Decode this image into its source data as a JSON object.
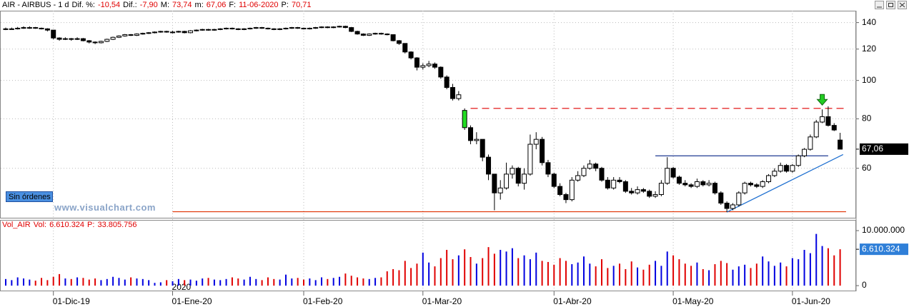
{
  "chart_data": [
    {
      "type": "candlestick",
      "header": {
        "symbol": "AIR - AIRBUS - 1 d",
        "items": [
          {
            "label": "Dif. %:",
            "value": "-10,54"
          },
          {
            "label": "Dif.:",
            "value": "-7,90"
          },
          {
            "label": "M:",
            "value": "73,74"
          },
          {
            "label": "m:",
            "value": "67,06"
          },
          {
            "label": "F:",
            "value": "11-06-2020"
          },
          {
            "label": "P:",
            "value": "70,71"
          }
        ]
      },
      "status_label": "Sin órdenes",
      "watermark": "www.visualchart.com",
      "year_label": "2020",
      "categories": [
        null,
        null,
        null,
        null,
        null,
        null,
        null,
        null,
        "01-Dic-19",
        null,
        null,
        null,
        null,
        null,
        null,
        null,
        null,
        null,
        null,
        null,
        null,
        null,
        null,
        null,
        null,
        null,
        null,
        null,
        "01-Ene-20",
        null,
        null,
        null,
        null,
        null,
        null,
        null,
        null,
        null,
        null,
        null,
        null,
        null,
        null,
        null,
        null,
        null,
        null,
        null,
        null,
        null,
        "01-Feb-20",
        null,
        null,
        null,
        null,
        null,
        null,
        null,
        null,
        null,
        null,
        null,
        null,
        null,
        null,
        null,
        null,
        null,
        null,
        null,
        "01-Mar-20",
        null,
        null,
        null,
        null,
        null,
        null,
        null,
        null,
        null,
        null,
        null,
        null,
        null,
        null,
        null,
        null,
        null,
        null,
        null,
        null,
        null,
        "01-Abr-20",
        null,
        null,
        null,
        null,
        null,
        null,
        null,
        null,
        null,
        null,
        null,
        null,
        null,
        null,
        null,
        null,
        null,
        null,
        null,
        "01-May-20",
        null,
        null,
        null,
        null,
        null,
        null,
        null,
        null,
        null,
        null,
        null,
        null,
        null,
        null,
        null,
        null,
        null,
        null,
        null,
        "01-Jun-20",
        null,
        null,
        null,
        null,
        null,
        null,
        null,
        null
      ],
      "candles": [
        [
          134.5,
          136,
          134,
          135
        ],
        [
          135,
          136,
          134.5,
          135
        ],
        [
          135,
          136.5,
          134.5,
          135.5
        ],
        [
          135.5,
          137,
          135,
          136
        ],
        [
          136,
          137,
          135,
          136
        ],
        [
          136,
          136.5,
          135,
          135.5
        ],
        [
          135.5,
          136,
          134.5,
          135
        ],
        [
          135,
          135.5,
          133,
          134
        ],
        [
          134,
          134,
          127,
          128
        ],
        [
          128,
          128.5,
          126,
          127
        ],
        [
          127,
          128.5,
          126.5,
          127.5
        ],
        [
          127.5,
          128,
          126,
          127
        ],
        [
          127,
          128.5,
          126.5,
          127.5
        ],
        [
          127.5,
          128,
          125.5,
          126
        ],
        [
          126,
          126.5,
          124,
          125
        ],
        [
          125,
          125.5,
          123.5,
          124.5
        ],
        [
          124.5,
          126,
          124,
          125.5
        ],
        [
          125.5,
          127.5,
          125,
          127
        ],
        [
          127,
          129,
          126.5,
          128.5
        ],
        [
          128.5,
          130,
          128,
          129.5
        ],
        [
          129.5,
          131,
          129,
          130.5
        ],
        [
          130.5,
          131,
          129.5,
          130
        ],
        [
          130,
          131.5,
          129.5,
          131
        ],
        [
          131,
          132,
          130.5,
          131.5
        ],
        [
          131.5,
          132.5,
          131,
          132
        ],
        [
          132,
          133,
          131.5,
          132.5
        ],
        [
          132.5,
          133.5,
          132,
          133
        ],
        [
          133,
          133.5,
          132,
          132.5
        ],
        [
          132.5,
          133.5,
          131.5,
          132.5
        ],
        [
          132.5,
          133.5,
          132,
          133
        ],
        [
          133,
          133.5,
          131.5,
          132
        ],
        [
          132,
          134,
          131.5,
          133.5
        ],
        [
          133.5,
          134.5,
          133,
          134
        ],
        [
          134,
          135,
          133.5,
          134.5
        ],
        [
          134.5,
          135,
          133.5,
          134
        ],
        [
          134,
          135,
          133.5,
          134.5
        ],
        [
          134.5,
          135.5,
          134,
          135
        ],
        [
          135,
          136,
          134.5,
          135.5
        ],
        [
          135.5,
          136,
          134.5,
          135
        ],
        [
          135,
          135.5,
          134,
          134.5
        ],
        [
          134.5,
          135.5,
          134,
          135
        ],
        [
          135,
          136,
          134.5,
          135.5
        ],
        [
          135.5,
          136.5,
          135,
          136
        ],
        [
          136,
          136.5,
          135,
          135.5
        ],
        [
          135.5,
          136,
          134.5,
          135
        ],
        [
          135,
          135.5,
          134,
          134.5
        ],
        [
          134.5,
          135.5,
          134,
          135
        ],
        [
          135,
          136,
          134.5,
          135.5
        ],
        [
          135.5,
          136.5,
          135,
          136
        ],
        [
          136,
          136.5,
          135,
          135.5
        ],
        [
          135.5,
          136,
          134.5,
          135
        ],
        [
          135,
          136,
          134.5,
          135.5
        ],
        [
          135.5,
          136.5,
          135,
          136
        ],
        [
          136,
          137,
          135.5,
          136.5
        ],
        [
          136.5,
          137,
          135.5,
          136
        ],
        [
          136,
          137,
          135.5,
          136.5
        ],
        [
          136.5,
          137.5,
          136,
          137
        ],
        [
          137,
          137.5,
          135.5,
          136
        ],
        [
          136,
          136.5,
          132.5,
          133
        ],
        [
          133,
          133.5,
          130.5,
          131
        ],
        [
          131,
          131.5,
          129.5,
          130
        ],
        [
          130,
          131.5,
          129.5,
          131
        ],
        [
          131,
          132,
          130.5,
          131.5
        ],
        [
          131.5,
          132,
          130.5,
          131
        ],
        [
          131,
          131.5,
          130,
          130.5
        ],
        [
          130.5,
          130.5,
          125.5,
          126
        ],
        [
          126,
          126.5,
          123,
          124
        ],
        [
          124,
          124,
          117,
          118
        ],
        [
          118,
          118.5,
          113,
          114
        ],
        [
          114,
          114.5,
          106,
          108
        ],
        [
          108,
          110.5,
          106.5,
          109
        ],
        [
          109,
          112,
          108,
          110
        ],
        [
          110,
          111,
          107,
          108
        ],
        [
          108,
          108.5,
          101,
          102
        ],
        [
          102,
          103,
          95,
          96
        ],
        [
          96,
          98,
          89,
          90
        ],
        [
          90,
          94,
          89,
          92
        ],
        [
          84,
          85,
          75,
          76
        ],
        [
          76,
          77,
          69,
          70.5
        ],
        [
          70.5,
          74,
          69,
          71
        ],
        [
          71,
          71,
          62.5,
          64
        ],
        [
          64,
          65,
          56,
          58
        ],
        [
          58,
          58,
          47,
          52
        ],
        [
          52,
          56,
          50,
          53.5
        ],
        [
          53.5,
          62,
          53,
          58
        ],
        [
          58,
          61,
          56.5,
          60
        ],
        [
          60,
          60.5,
          54,
          55
        ],
        [
          55,
          60,
          53,
          58
        ],
        [
          58,
          73,
          57.5,
          69
        ],
        [
          69,
          74,
          67,
          71
        ],
        [
          71,
          72,
          61,
          62
        ],
        [
          62,
          63,
          57,
          58
        ],
        [
          58,
          58.5,
          53.5,
          54
        ],
        [
          54,
          55,
          51,
          51.5
        ],
        [
          51.5,
          52,
          49,
          50
        ],
        [
          50,
          57,
          49.5,
          56
        ],
        [
          56,
          59,
          55.5,
          57.5
        ],
        [
          57.5,
          61,
          57,
          60
        ],
        [
          60,
          63,
          59.5,
          61.5
        ],
        [
          61.5,
          62,
          59,
          60
        ],
        [
          60,
          60.5,
          55.5,
          56
        ],
        [
          56,
          57,
          53,
          53.5
        ],
        [
          53.5,
          57,
          53,
          56
        ],
        [
          56,
          57,
          55,
          55.5
        ],
        [
          55.5,
          56,
          52,
          52.5
        ],
        [
          52.5,
          53.5,
          51.5,
          52
        ],
        [
          52,
          54,
          51.5,
          53
        ],
        [
          53,
          53.5,
          52,
          52.5
        ],
        [
          52.5,
          53,
          50.5,
          51
        ],
        [
          51,
          52.5,
          50.5,
          51.5
        ],
        [
          51.5,
          56,
          51,
          55
        ],
        [
          55,
          64,
          54.5,
          60
        ],
        [
          60,
          60.5,
          56.5,
          57
        ],
        [
          57,
          57.5,
          54.5,
          55
        ],
        [
          55,
          56,
          54,
          54.5
        ],
        [
          54.5,
          55,
          53.5,
          54
        ],
        [
          54,
          56.5,
          53.5,
          55.5
        ],
        [
          55.5,
          56,
          54,
          54.5
        ],
        [
          54.5,
          56,
          54,
          55
        ],
        [
          55,
          55.5,
          51.5,
          52
        ],
        [
          52,
          52.5,
          48.5,
          49
        ],
        [
          49,
          49.5,
          46.5,
          47.5
        ],
        [
          47.5,
          49,
          47,
          48.5
        ],
        [
          48.5,
          52.5,
          48,
          52
        ],
        [
          52,
          55.5,
          51.5,
          55
        ],
        [
          55,
          55.5,
          54,
          54.5
        ],
        [
          54.5,
          55,
          53.5,
          54
        ],
        [
          54,
          56,
          53.5,
          55.5
        ],
        [
          55.5,
          58,
          55,
          57.5
        ],
        [
          57.5,
          60,
          57,
          59
        ],
        [
          59,
          62,
          58.5,
          61
        ],
        [
          61,
          61.5,
          58.5,
          59
        ],
        [
          59,
          61.5,
          58.5,
          61
        ],
        [
          61,
          65,
          60.5,
          64.5
        ],
        [
          64.5,
          67.5,
          64,
          67
        ],
        [
          67,
          73,
          66.5,
          72
        ],
        [
          72,
          79.5,
          71.5,
          78.5
        ],
        [
          78.5,
          84.5,
          78,
          81
        ],
        [
          81,
          86,
          76.5,
          77
        ],
        [
          77,
          78,
          74.5,
          74.96
        ],
        [
          70.71,
          73.74,
          67.06,
          67.06
        ]
      ],
      "up_color": "#ffffff",
      "down_color": "#000000",
      "highlight": {
        "index": 77,
        "color": "#22dd22"
      },
      "signal_arrow": {
        "index": 137,
        "color": "#22cc22"
      },
      "ylim": [
        45,
        150
      ],
      "yticks": [
        60,
        80,
        100,
        120,
        140
      ],
      "log_scale": true,
      "grid": true,
      "last_marker": {
        "value": 67.06,
        "label": "67,06"
      },
      "levels": [
        {
          "value": 85,
          "from": 78,
          "to": 141,
          "color": "#e00000",
          "dashed": true
        },
        {
          "value": 64.5,
          "from": 109,
          "to": 138,
          "color": "#1f3a93",
          "dashed": false
        },
        {
          "value": 46.6,
          "from": 28,
          "to": 141,
          "color": "#e03000",
          "dashed": false
        }
      ],
      "trendline": {
        "from": [
          121,
          46.5
        ],
        "to": [
          140.5,
          65
        ],
        "color": "#1e6fd0"
      }
    },
    {
      "type": "volume",
      "header": {
        "name": "Vol_AIR",
        "items": [
          {
            "label": "Vol:",
            "value": "6.610.324"
          },
          {
            "label": "P:",
            "value": "33.805.756"
          }
        ]
      },
      "values": [
        1200000,
        1000000,
        1500000,
        1300000,
        1100000,
        900000,
        1400000,
        1000000,
        1600000,
        2100000,
        1300000,
        1200000,
        1500000,
        1400000,
        1100000,
        1300000,
        1000000,
        1200000,
        1600000,
        1400000,
        1100000,
        1500000,
        1300000,
        1200000,
        1000000,
        500000,
        600000,
        1000000,
        800000,
        1200000,
        1000000,
        1100000,
        900000,
        1300000,
        1400000,
        1100000,
        1000000,
        1200000,
        1500000,
        1300000,
        1100000,
        1600000,
        1200000,
        1000000,
        1500000,
        1200000,
        1100000,
        2000000,
        1300000,
        1400000,
        1100000,
        1300000,
        1000000,
        1500000,
        1200000,
        1400000,
        1600000,
        2200000,
        1800000,
        1500000,
        1300000,
        1200000,
        1400000,
        1500000,
        2600000,
        3000000,
        2800000,
        4500000,
        3200000,
        4000000,
        6000000,
        4200000,
        3500000,
        5000000,
        6500000,
        4800000,
        5500000,
        6600000,
        5200000,
        4000000,
        5000000,
        7000000,
        5800000,
        6500000,
        6200000,
        6800000,
        5000000,
        5500000,
        4800000,
        6000000,
        4500000,
        4300000,
        3800000,
        5000000,
        4500000,
        3900000,
        4200000,
        5300000,
        4000000,
        3500000,
        4800000,
        3200000,
        3600000,
        4000000,
        3000000,
        4400000,
        3300000,
        2900000,
        3800000,
        4500000,
        3600000,
        6200000,
        5500000,
        4800000,
        4000000,
        3600000,
        4200000,
        3000000,
        2800000,
        3900000,
        4500000,
        4100000,
        2900000,
        3500000,
        3800000,
        3200000,
        4000000,
        5300000,
        4400000,
        3600000,
        4200000,
        3500000,
        5000000,
        4800000,
        6500000,
        5900000,
        9400000,
        7200000,
        6800000,
        5500000,
        6610324
      ],
      "up_color": "#0000e0",
      "down_color": "#e00000",
      "ylim": [
        -900000,
        11300000
      ],
      "yticks": [
        0,
        {
          "value": 10000000,
          "label": "10.000.000"
        }
      ],
      "last_marker": {
        "value": 6610324,
        "label": "6.610.324"
      }
    }
  ]
}
